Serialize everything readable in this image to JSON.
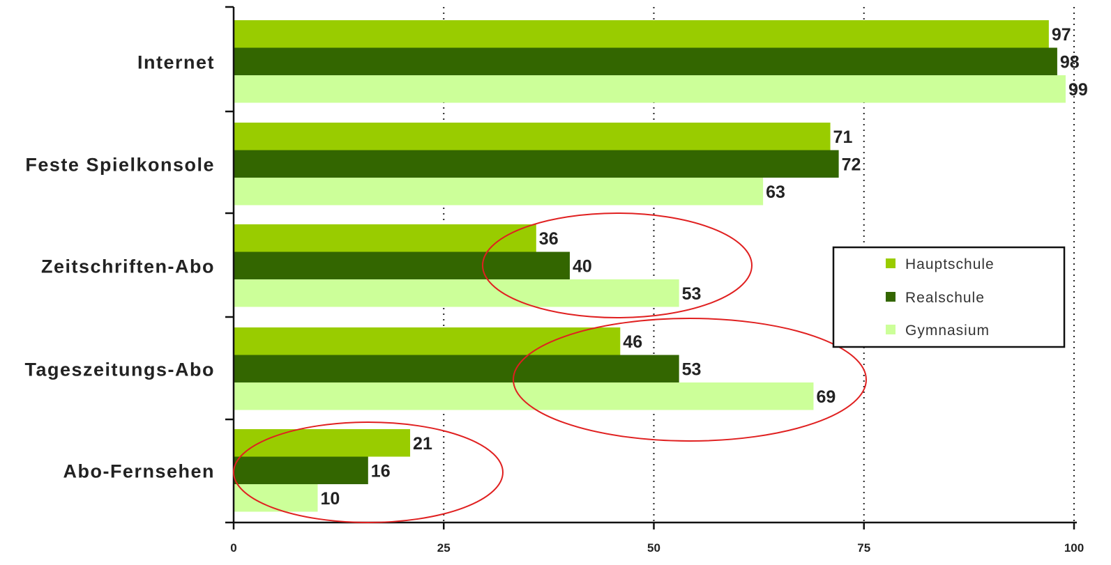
{
  "chart_data": {
    "type": "bar",
    "orientation": "horizontal",
    "categories": [
      "Internet",
      "Feste Spielkonsole",
      "Zeitschriften-Abo",
      "Tageszeitungs-Abo",
      "Abo-Fernsehen"
    ],
    "series": [
      {
        "name": "Hauptschule",
        "color": "#99cc00",
        "values": [
          97,
          71,
          36,
          46,
          21
        ]
      },
      {
        "name": "Realschule",
        "color": "#336600",
        "values": [
          98,
          72,
          40,
          53,
          16
        ]
      },
      {
        "name": "Gymnasium",
        "color": "#ccff99",
        "values": [
          99,
          63,
          53,
          69,
          10
        ]
      }
    ],
    "xlim": [
      0,
      100
    ],
    "xticks": [
      0,
      25,
      50,
      75,
      100
    ],
    "xtick_labels": [
      "0",
      "25",
      "50",
      "75",
      "100"
    ],
    "grid": "vertical dotted lines at 25, 50, 75, 100",
    "legend_position": "right",
    "annotations": [
      {
        "type": "ellipse",
        "color": "#e02020",
        "around": "Zeitschriften-Abo"
      },
      {
        "type": "ellipse",
        "color": "#e02020",
        "around": "Tageszeitungs-Abo"
      },
      {
        "type": "ellipse",
        "color": "#e02020",
        "around": "Abo-Fernsehen"
      }
    ]
  }
}
